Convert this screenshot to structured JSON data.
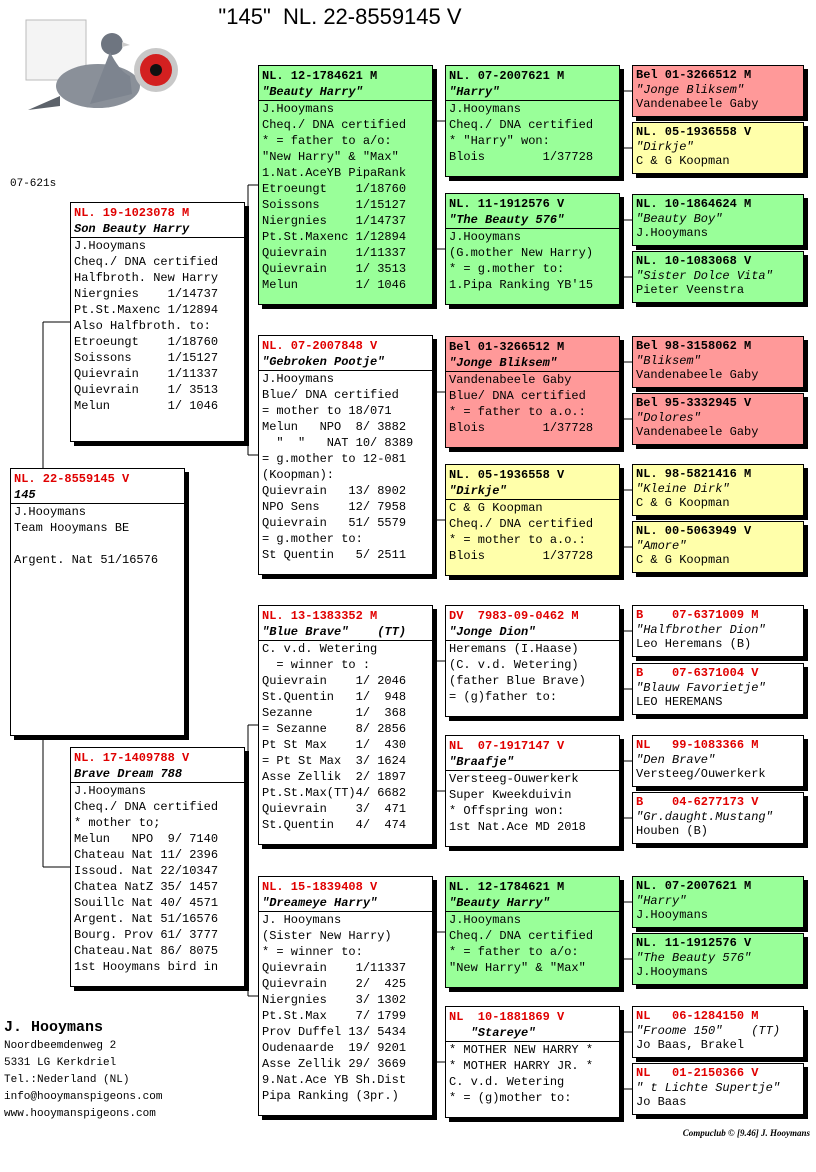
{
  "header": {
    "title": "\"145\"  NL. 22-8559145 V"
  },
  "ring_label": "07-621s",
  "pedigree": [
    {
      "ring": "NL. 22-8559145 V",
      "name": "145",
      "color": "#ffffff",
      "lines": [
        "J.Hooymans",
        "Team Hooymans BE",
        "Argent. Nat 51/16576"
      ]
    },
    {
      "ring": "NL. 19-1023078 M",
      "name": "Son Beauty Harry",
      "color": "#ffffff",
      "lines": [
        "J.Hooymans",
        "Cheq./ DNA certified",
        "Halfbroth. New Harry",
        "Niergnies    1/14737",
        "Pt.St.Maxenc 1/12894",
        "Also Halfbroth. to:",
        "Etroeungt    1/18760",
        "Soissons     1/15127",
        "Quievrain    1/11337",
        "Quievrain    1/ 3513",
        "Melun        1/ 1046"
      ]
    },
    {
      "ring": "NL. 17-1409788 V",
      "name": "Brave Dream 788",
      "color": "#ffffff",
      "lines": [
        "J.Hooymans",
        "Cheq./ DNA certified",
        "* mother to;",
        "Melun   NPO  9/ 7140",
        "Chateau Nat 11/ 2396",
        "Issoud. Nat 22/10347",
        "Chatea NatZ 35/ 1457",
        "Souillc Nat 40/ 4571",
        "Argent. Nat 51/16576",
        "Bourg. Prov 61/ 3777",
        "Chateau.Nat 86/ 8075",
        "1st Hooymans bird in"
      ]
    },
    {
      "ring": "NL. 12-1784621 M",
      "name": "\"Beauty Harry\"",
      "color": "#99ff99",
      "lines": [
        "J.Hooymans",
        "Cheq./ DNA certified",
        "* = father to a/o:",
        "\"New Harry\" & \"Max\"",
        "1.Nat.AceYB PipaRank",
        "Etroeungt    1/18760",
        "Soissons     1/15127",
        "Niergnies    1/14737",
        "Pt.St.Maxenc 1/12894",
        "Quievrain    1/11337",
        "Quievrain    1/ 3513",
        "Melun        1/ 1046"
      ]
    },
    {
      "ring": "NL. 07-2007848 V",
      "name": "\"Gebroken Pootje\"",
      "color": "#ffffff",
      "lines": [
        "J.Hooymans",
        "Blue/ DNA certified",
        "= mother to 18/071",
        "Melun   NPO  8/ 3882",
        "  \"  \"   NAT 10/ 8389",
        "= g.mother to 12-081",
        "(Koopman):",
        "Quievrain   13/ 8902",
        "NPO Sens    12/ 7958",
        "Quievrain   51/ 5579",
        "= g.mother to:",
        "St Quentin   5/ 2511"
      ]
    },
    {
      "ring": "NL. 13-1383352 M",
      "name": "\"Blue Brave\"    (TT)",
      "color": "#ffffff",
      "lines": [
        "C. v.d. Wetering",
        "  = winner to :",
        "Quievrain    1/ 2046",
        "St.Quentin   1/  948",
        "Sezanne      1/  368",
        "= Sezanne    8/ 2856",
        "Pt St Max    1/  430",
        "= Pt St Max  3/ 1624",
        "Asse Zellik  2/ 1897",
        "Pt.St.Max(TT)4/ 6682",
        "Quievrain    3/  471",
        "St.Quentin   4/  474"
      ]
    },
    {
      "ring": "NL. 15-1839408 V",
      "name": "\"Dreameye Harry\"",
      "color": "#ffffff",
      "lines": [
        "J. Hooymans",
        "(Sister New Harry)",
        "* = winner to:",
        "Quievrain    1/11337",
        "Quievrain    2/  425",
        "Niergnies    3/ 1302",
        "Pt.St.Max    7/ 1799",
        "Prov Duffel 13/ 5434",
        "Oudenaarde  19/ 9201",
        "Asse Zellik 29/ 3669",
        "9.Nat.Ace YB Sh.Dist",
        "Pipa Ranking (3pr.)"
      ]
    },
    {
      "ring": "NL. 07-2007621 M",
      "name": "\"Harry\"",
      "color": "#99ff99",
      "lines": [
        "J.Hooymans",
        "Cheq./ DNA certified",
        "* \"Harry\" won:",
        "Blois        1/37728"
      ]
    },
    {
      "ring": "NL. 11-1912576 V",
      "name": "\"The Beauty 576\"",
      "color": "#99ff99",
      "lines": [
        "J.Hooymans",
        "(G.mother New Harry)",
        "* = g.mother to:",
        "1.Pipa Ranking YB'15"
      ]
    },
    {
      "ring": "Bel 01-3266512 M",
      "name": "\"Jonge Bliksem\"",
      "color": "#ff9999",
      "lines": [
        "Vandenabeele Gaby",
        "Blue/ DNA certified",
        "* = father to a.o.:",
        "Blois        1/37728"
      ]
    },
    {
      "ring": "NL. 05-1936558 V",
      "name": "\"Dirkje\"",
      "color": "#ffffaa",
      "lines": [
        "C & G Koopman",
        "Cheq./ DNA certified",
        "* = mother to a.o.:",
        "Blois        1/37728"
      ]
    },
    {
      "ring": "DV  7983-09-0462 M",
      "name": "\"Jonge Dion\"",
      "color": "#ffffff",
      "lines": [
        "Heremans (I.Haase)",
        "(C. v.d. Wetering)",
        "(father Blue Brave)",
        "= (g)father to:"
      ]
    },
    {
      "ring": "NL  07-1917147 V",
      "name": "\"Braafje\"",
      "color": "#ffffff",
      "lines": [
        "Versteeg-Ouwerkerk",
        "Super Kweekduivin",
        "* Offspring won:",
        "1st Nat.Ace MD 2018"
      ]
    },
    {
      "ring": "NL. 12-1784621 M",
      "name": "\"Beauty Harry\"",
      "color": "#99ff99",
      "lines": [
        "J.Hooymans",
        "Cheq./ DNA certified",
        "* = father to a/o:",
        "\"New Harry\" & \"Max\""
      ]
    },
    {
      "ring": "NL  10-1881869 V",
      "name": "   \"Stareye\"",
      "color": "#ffffff",
      "lines": [
        "* MOTHER NEW HARRY *",
        "* MOTHER HARRY JR. *",
        "C. v.d. Wetering",
        "* = (g)mother to:"
      ]
    },
    {
      "ring": "Bel 01-3266512 M",
      "name": "\"Jonge Bliksem\"",
      "color": "#ff9999",
      "lines": [
        "Vandenabeele Gaby"
      ]
    },
    {
      "ring": "NL. 05-1936558 V",
      "name": "\"Dirkje\"",
      "color": "#ffffaa",
      "lines": [
        "C & G Koopman"
      ]
    },
    {
      "ring": "NL. 10-1864624 M",
      "name": "\"Beauty Boy\"",
      "color": "#99ff99",
      "lines": [
        "J.Hooymans"
      ]
    },
    {
      "ring": "NL. 10-1083068 V",
      "name": "\"Sister Dolce Vita\"",
      "color": "#99ff99",
      "lines": [
        "Pieter Veenstra"
      ]
    },
    {
      "ring": "Bel 98-3158062 M",
      "name": "\"Bliksem\"",
      "color": "#ff9999",
      "lines": [
        "Vandenabeele Gaby"
      ]
    },
    {
      "ring": "Bel 95-3332945 V",
      "name": "\"Dolores\"",
      "color": "#ff9999",
      "lines": [
        "Vandenabeele Gaby"
      ]
    },
    {
      "ring": "NL. 98-5821416 M",
      "name": "\"Kleine Dirk\"",
      "color": "#ffffaa",
      "lines": [
        "C & G Koopman"
      ]
    },
    {
      "ring": "NL. 00-5063949 V",
      "name": "\"Amore\"",
      "color": "#ffffaa",
      "lines": [
        "C & G Koopman"
      ]
    },
    {
      "ring": "B    07-6371009 M",
      "name": "\"Halfbrother Dion\"",
      "color": "#ffffff",
      "lines": [
        "Leo Heremans (B)"
      ]
    },
    {
      "ring": "B    07-6371004 V",
      "name": "\"Blauw Favorietje\"",
      "color": "#ffffff",
      "lines": [
        "LEO HEREMANS"
      ]
    },
    {
      "ring": "NL   99-1083366 M",
      "name": "\"Den Brave\"",
      "color": "#ffffff",
      "lines": [
        "Versteeg/Ouwerkerk"
      ]
    },
    {
      "ring": "B    04-6277173 V",
      "name": "\"Gr.daught.Mustang\"",
      "color": "#ffffff",
      "lines": [
        "Houben (B)"
      ]
    },
    {
      "ring": "NL. 07-2007621 M",
      "name": "\"Harry\"",
      "color": "#99ff99",
      "lines": [
        "J.Hooymans"
      ]
    },
    {
      "ring": "NL. 11-1912576 V",
      "name": "\"The Beauty 576\"",
      "color": "#99ff99",
      "lines": [
        "J.Hooymans"
      ]
    },
    {
      "ring": "NL   06-1284150 M",
      "name": "\"Froome 150\"    (TT)",
      "color": "#ffffff",
      "lines": [
        "Jo Baas, Brakel"
      ]
    },
    {
      "ring": "NL   01-2150366 V",
      "name": "\" t Lichte Supertje\"",
      "color": "#ffffff",
      "lines": [
        "Jo Baas"
      ]
    }
  ],
  "owner": {
    "name": "J. Hooymans",
    "address": [
      "Noordbeemdenweg 2",
      "5331 LG  Kerkdriel",
      "Tel.:Nederland (NL)",
      "info@hooymanspigeons.com",
      "www.hooymanspigeons.com"
    ]
  },
  "footer": "Compuclub © [9.46]  J. Hooymans"
}
